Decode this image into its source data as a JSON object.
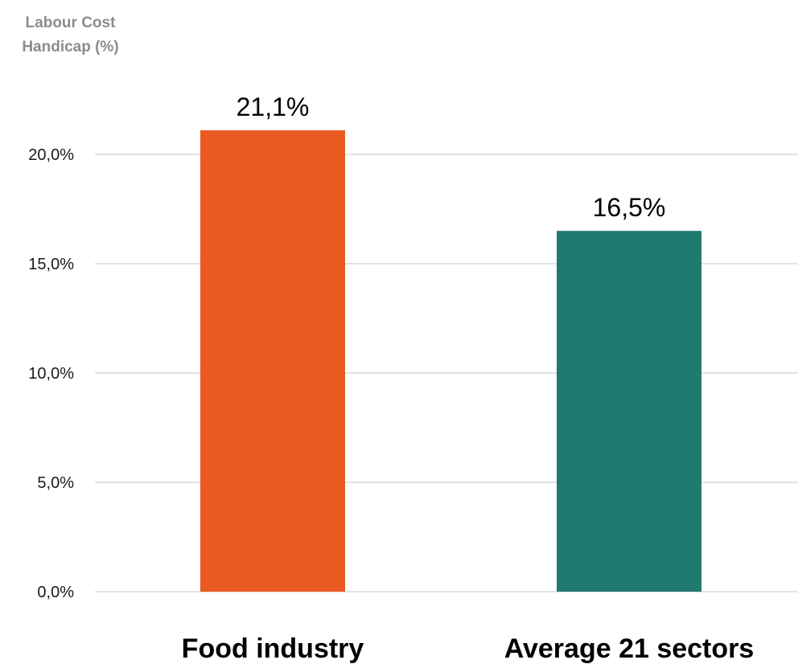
{
  "chart_data": {
    "type": "bar",
    "ylabel_lines": [
      "Labour Cost",
      "Handicap (%)"
    ],
    "xlabel": "",
    "categories": [
      "Food industry",
      "Average 21 sectors"
    ],
    "values": [
      21.1,
      16.5
    ],
    "data_labels": [
      "21,1%",
      "16,5%"
    ],
    "colors": [
      "#EA5A20",
      "#217A70"
    ],
    "ylim": [
      0,
      20
    ],
    "yticks": [
      0,
      5,
      10,
      15,
      20
    ],
    "ytick_labels": [
      "0,0%",
      "5,0%",
      "10,0%",
      "15,0%",
      "20,0%"
    ],
    "grid": true,
    "legend": "none"
  }
}
